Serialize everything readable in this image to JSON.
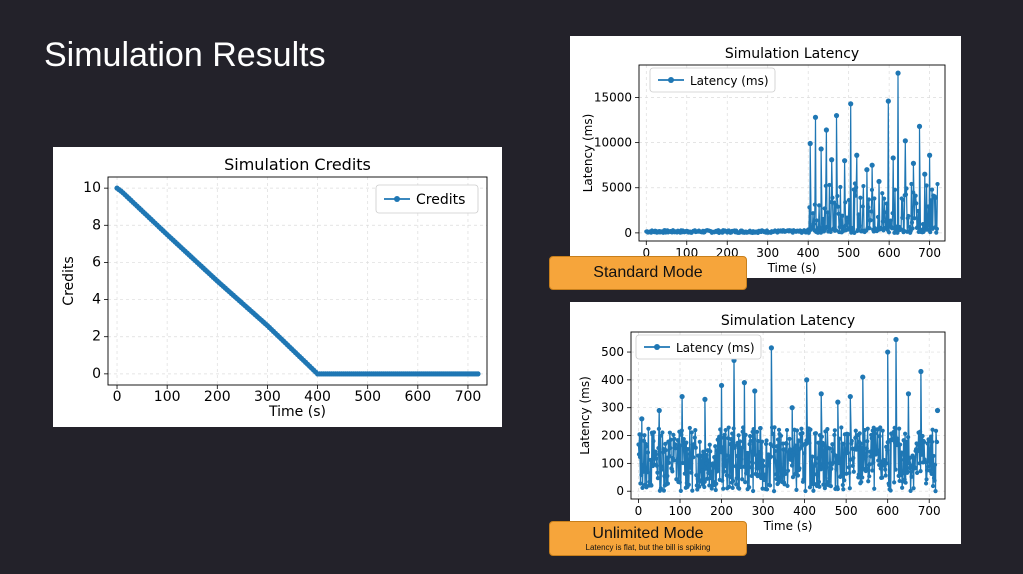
{
  "slide": {
    "title": "Simulation Results",
    "badges": {
      "standard": {
        "label": "Standard Mode"
      },
      "unlimited": {
        "label": "Unlimited Mode",
        "caption": "Latency is flat, but the bill is spiking"
      }
    }
  },
  "colors": {
    "background": "#23222a",
    "series": "#1f77b4",
    "badge": "#f6a53b"
  },
  "chart_data": [
    {
      "id": "credits",
      "type": "line",
      "title": "Simulation Credits",
      "xlabel": "Time (s)",
      "ylabel": "Credits",
      "xlim": [
        -18,
        738
      ],
      "ylim": [
        -0.6,
        10.6
      ],
      "xticks": [
        0,
        100,
        200,
        300,
        400,
        500,
        600,
        700
      ],
      "yticks": [
        0,
        2,
        4,
        6,
        8,
        10
      ],
      "grid": true,
      "legend": "top-right",
      "series": [
        {
          "name": "Credits",
          "x": [
            0,
            10,
            100,
            200,
            300,
            400,
            410,
            500,
            600,
            720
          ],
          "values": [
            10,
            9.8,
            7.5,
            5.0,
            2.6,
            0,
            0,
            0,
            0,
            0
          ]
        }
      ]
    },
    {
      "id": "latency_standard",
      "type": "line",
      "title": "Simulation Latency",
      "xlabel": "Time (s)",
      "ylabel": "Latency (ms)",
      "xlim": [
        -18,
        738
      ],
      "ylim": [
        -900,
        18600
      ],
      "xticks": [
        0,
        100,
        200,
        300,
        400,
        500,
        600,
        700
      ],
      "yticks": [
        0,
        5000,
        10000,
        15000
      ],
      "grid": true,
      "legend": "top-left",
      "series": [
        {
          "name": "Latency (ms)",
          "baseline_until": 400,
          "baseline_max": 300,
          "x": [
            405,
            418,
            432,
            445,
            458,
            470,
            490,
            505,
            520,
            545,
            558,
            575,
            598,
            610,
            622,
            640,
            660,
            675,
            688,
            700,
            712
          ],
          "values": [
            9900,
            12800,
            9300,
            11400,
            8100,
            13000,
            8000,
            14300,
            8600,
            7000,
            7500,
            5700,
            14600,
            8300,
            17700,
            10200,
            7700,
            11800,
            6500,
            8600,
            4000
          ]
        }
      ]
    },
    {
      "id": "latency_unlimited",
      "type": "line",
      "title": "Simulation Latency",
      "xlabel": "Time (s)",
      "ylabel": "Latency (ms)",
      "xlim": [
        -18,
        738
      ],
      "ylim": [
        -28,
        572
      ],
      "xticks": [
        0,
        100,
        200,
        300,
        400,
        500,
        600,
        700
      ],
      "yticks": [
        0,
        100,
        200,
        300,
        400,
        500
      ],
      "grid": true,
      "legend": "top-left",
      "series": [
        {
          "name": "Latency (ms)",
          "band_max": 230,
          "x": [
            8,
            50,
            105,
            160,
            200,
            230,
            255,
            280,
            320,
            370,
            405,
            440,
            480,
            510,
            540,
            600,
            620,
            650,
            680,
            720
          ],
          "values": [
            260,
            290,
            340,
            330,
            380,
            470,
            390,
            360,
            515,
            300,
            400,
            350,
            320,
            340,
            410,
            500,
            545,
            350,
            430,
            290
          ]
        }
      ]
    }
  ]
}
